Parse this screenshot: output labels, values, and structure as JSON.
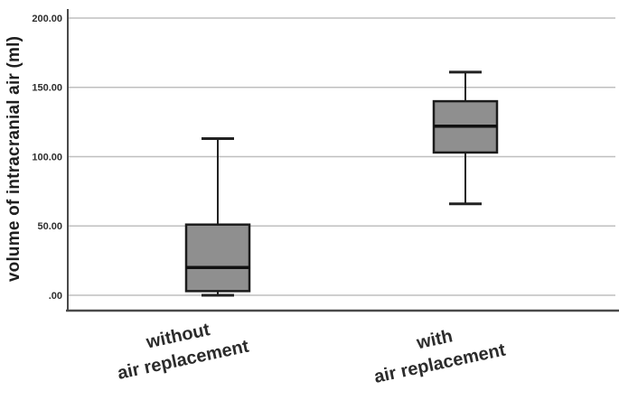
{
  "chart_data": {
    "type": "boxplot",
    "title": "",
    "xlabel": "",
    "ylabel": "volume of intracranial air (ml)",
    "ylim": [
      0,
      200
    ],
    "yticks": [
      0,
      50,
      100,
      150,
      200
    ],
    "ytick_labels": [
      ".00",
      "50.00",
      "100.00",
      "150.00",
      "200.00"
    ],
    "grid": true,
    "legend": "none",
    "categories": [
      {
        "label_lines": [
          "without",
          "air replacement"
        ]
      },
      {
        "label_lines": [
          "with",
          "air replacement"
        ]
      }
    ],
    "series": [
      {
        "name": "without air replacement",
        "min": 0,
        "q1": 3,
        "median": 20,
        "q3": 51,
        "max": 113
      },
      {
        "name": "with air replacement",
        "min": 66,
        "q1": 103,
        "median": 122,
        "q3": 140,
        "max": 161
      }
    ],
    "colors": {
      "box_fill": "#8f8f8f",
      "box_stroke": "#1c1c1c",
      "median_stroke": "#111111",
      "whisker_stroke": "#222222",
      "grid": "#bfbfbf",
      "axis": "#4a4a4a",
      "background": "#ffffff",
      "text": "#262626"
    }
  }
}
